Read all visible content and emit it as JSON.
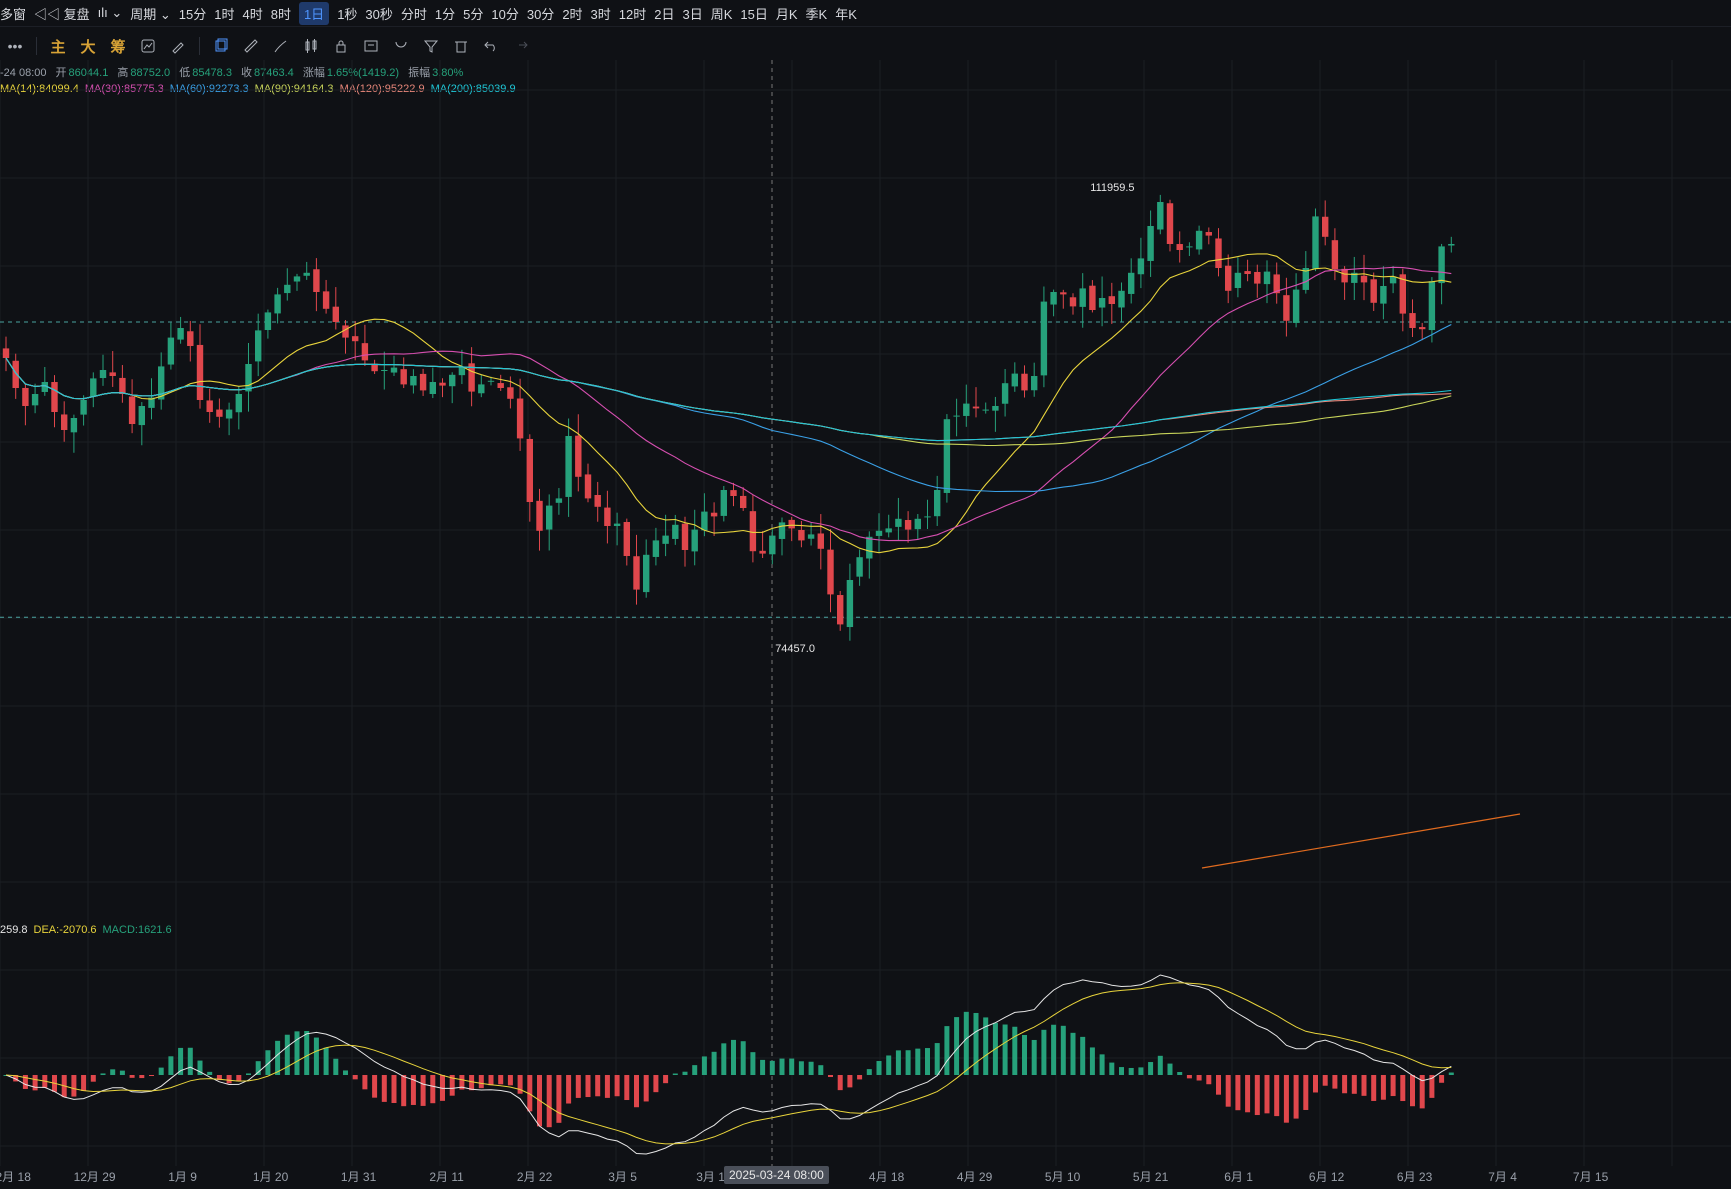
{
  "topbar": {
    "items": [
      "多窗",
      "◁◁ 复盘",
      "ılı ⌄",
      "周期 ⌄",
      "15分",
      "1时",
      "4时",
      "8时",
      "1日",
      "1秒",
      "30秒",
      "分时",
      "1分",
      "5分",
      "10分",
      "30分",
      "2时",
      "3时",
      "12时",
      "2日",
      "3日",
      "周K",
      "15日",
      "月K",
      "季K",
      "年K"
    ],
    "active_index": 8
  },
  "toolbar": {
    "more": "•••",
    "main": "主",
    "big": "大",
    "chip": "筹"
  },
  "info_line": {
    "date": "-24 08:00",
    "open_label": "开",
    "open": "86044.1",
    "high_label": "高",
    "high": "88752.0",
    "low_label": "低",
    "low": "85478.3",
    "close_label": "收",
    "close": "87463.4",
    "change_label": "涨幅",
    "change": "1.65%(1419.2)",
    "amp_label": "振幅",
    "amp": "3.80%"
  },
  "ma_legend": [
    {
      "text": "MA(14):84099.4",
      "color": "#e8d43c"
    },
    {
      "text": "MA(30):85775.3",
      "color": "#d64fb0"
    },
    {
      "text": "MA(60):92273.3",
      "color": "#3aa0e6"
    },
    {
      "text": "MA(90):94164.3",
      "color": "#c8d45a"
    },
    {
      "text": "MA(120):95222.9",
      "color": "#e8877a"
    },
    {
      "text": "MA(200):85039.9",
      "color": "#1fc8d8"
    }
  ],
  "macd_legend": [
    {
      "text": "259.8",
      "color": "#e6e6e6"
    },
    {
      "text": "DEA:-2070.6",
      "color": "#e8d43c"
    },
    {
      "text": "MACD:1621.6",
      "color": "#26a17b"
    }
  ],
  "annotations": {
    "high_label": "111959.5",
    "low_label": "74457.0",
    "crosshair_date": "2025-03-24 08:00"
  },
  "xaxis_labels": [
    "2月 18",
    "12月 29",
    "1月 9",
    "1月 20",
    "1月 31",
    "2月 11",
    "2月 22",
    "3月 5",
    "3月 1",
    "4月 7",
    "4月 18",
    "4月 29",
    "5月 10",
    "5月 21",
    "6月 1",
    "6月 12",
    "6月 23",
    "7月 4",
    "7月 15"
  ],
  "colors": {
    "up": "#26a17b",
    "down": "#e0474c",
    "background": "#0f1115",
    "grid": "#1b1e24"
  },
  "chart_data": {
    "type": "candlestick",
    "interval": "1日",
    "price_scale": {
      "min": 50000,
      "max": 120000
    },
    "highest": 111959.5,
    "lowest": 74457.0,
    "reference_levels": [
      101500,
      76900
    ],
    "closes": [
      98500,
      96000,
      94500,
      95500,
      96500,
      94000,
      92500,
      93500,
      95000,
      96800,
      97500,
      97000,
      95500,
      93000,
      94500,
      95200,
      97800,
      100200,
      101000,
      99500,
      95000,
      94000,
      93600,
      94200,
      95500,
      98000,
      100800,
      102300,
      103800,
      104600,
      105300,
      105600,
      104000,
      102600,
      101500,
      100200,
      99900,
      98300,
      97400,
      97500,
      97700,
      96300,
      97000,
      95800,
      96500,
      96200,
      97100,
      97800,
      95700,
      96300,
      96600,
      96000,
      95100,
      91800,
      86500,
      84100,
      86200,
      86800,
      92000,
      88600,
      86800,
      86100,
      84500,
      84700,
      82000,
      79200,
      82100,
      83300,
      83700,
      84600,
      82500,
      84200,
      85700,
      85300,
      87500,
      87000,
      86000,
      82400,
      82200,
      83700,
      84800,
      84300,
      83300,
      83800,
      82600,
      78800,
      76300,
      80000,
      81900,
      83600,
      84100,
      84300,
      85100,
      84200,
      85100,
      85300,
      87500,
      93400,
      93700,
      94700,
      94300,
      94200,
      94500,
      96400,
      97200,
      95800,
      97000,
      103200,
      104000,
      103800,
      102800,
      104300,
      102500,
      103500,
      103000,
      104100,
      105600,
      106800,
      109500,
      111500,
      108000,
      107500,
      107800,
      109100,
      108700,
      106000,
      104100,
      105600,
      105500,
      104700,
      105700,
      103900,
      101600,
      104200,
      106000,
      110300,
      108600,
      105900,
      104800,
      105600,
      104800,
      103100,
      104500,
      105300,
      102200,
      101000,
      100900,
      104900,
      107800,
      108000
    ],
    "ma_series": [
      {
        "name": "MA(14)",
        "value": 84099.4,
        "color": "#e8d43c"
      },
      {
        "name": "MA(30)",
        "value": 85775.3,
        "color": "#d64fb0"
      },
      {
        "name": "MA(60)",
        "value": 92273.3,
        "color": "#3aa0e6"
      },
      {
        "name": "MA(90)",
        "value": 94164.3,
        "color": "#c8d45a"
      },
      {
        "name": "MA(120)",
        "value": 95222.9,
        "color": "#e8877a"
      },
      {
        "name": "MA(200)",
        "value": 85039.9,
        "color": "#1fc8d8"
      }
    ],
    "macd": {
      "dif": 259.8,
      "dea": -2070.6,
      "macd": 1621.6
    }
  }
}
